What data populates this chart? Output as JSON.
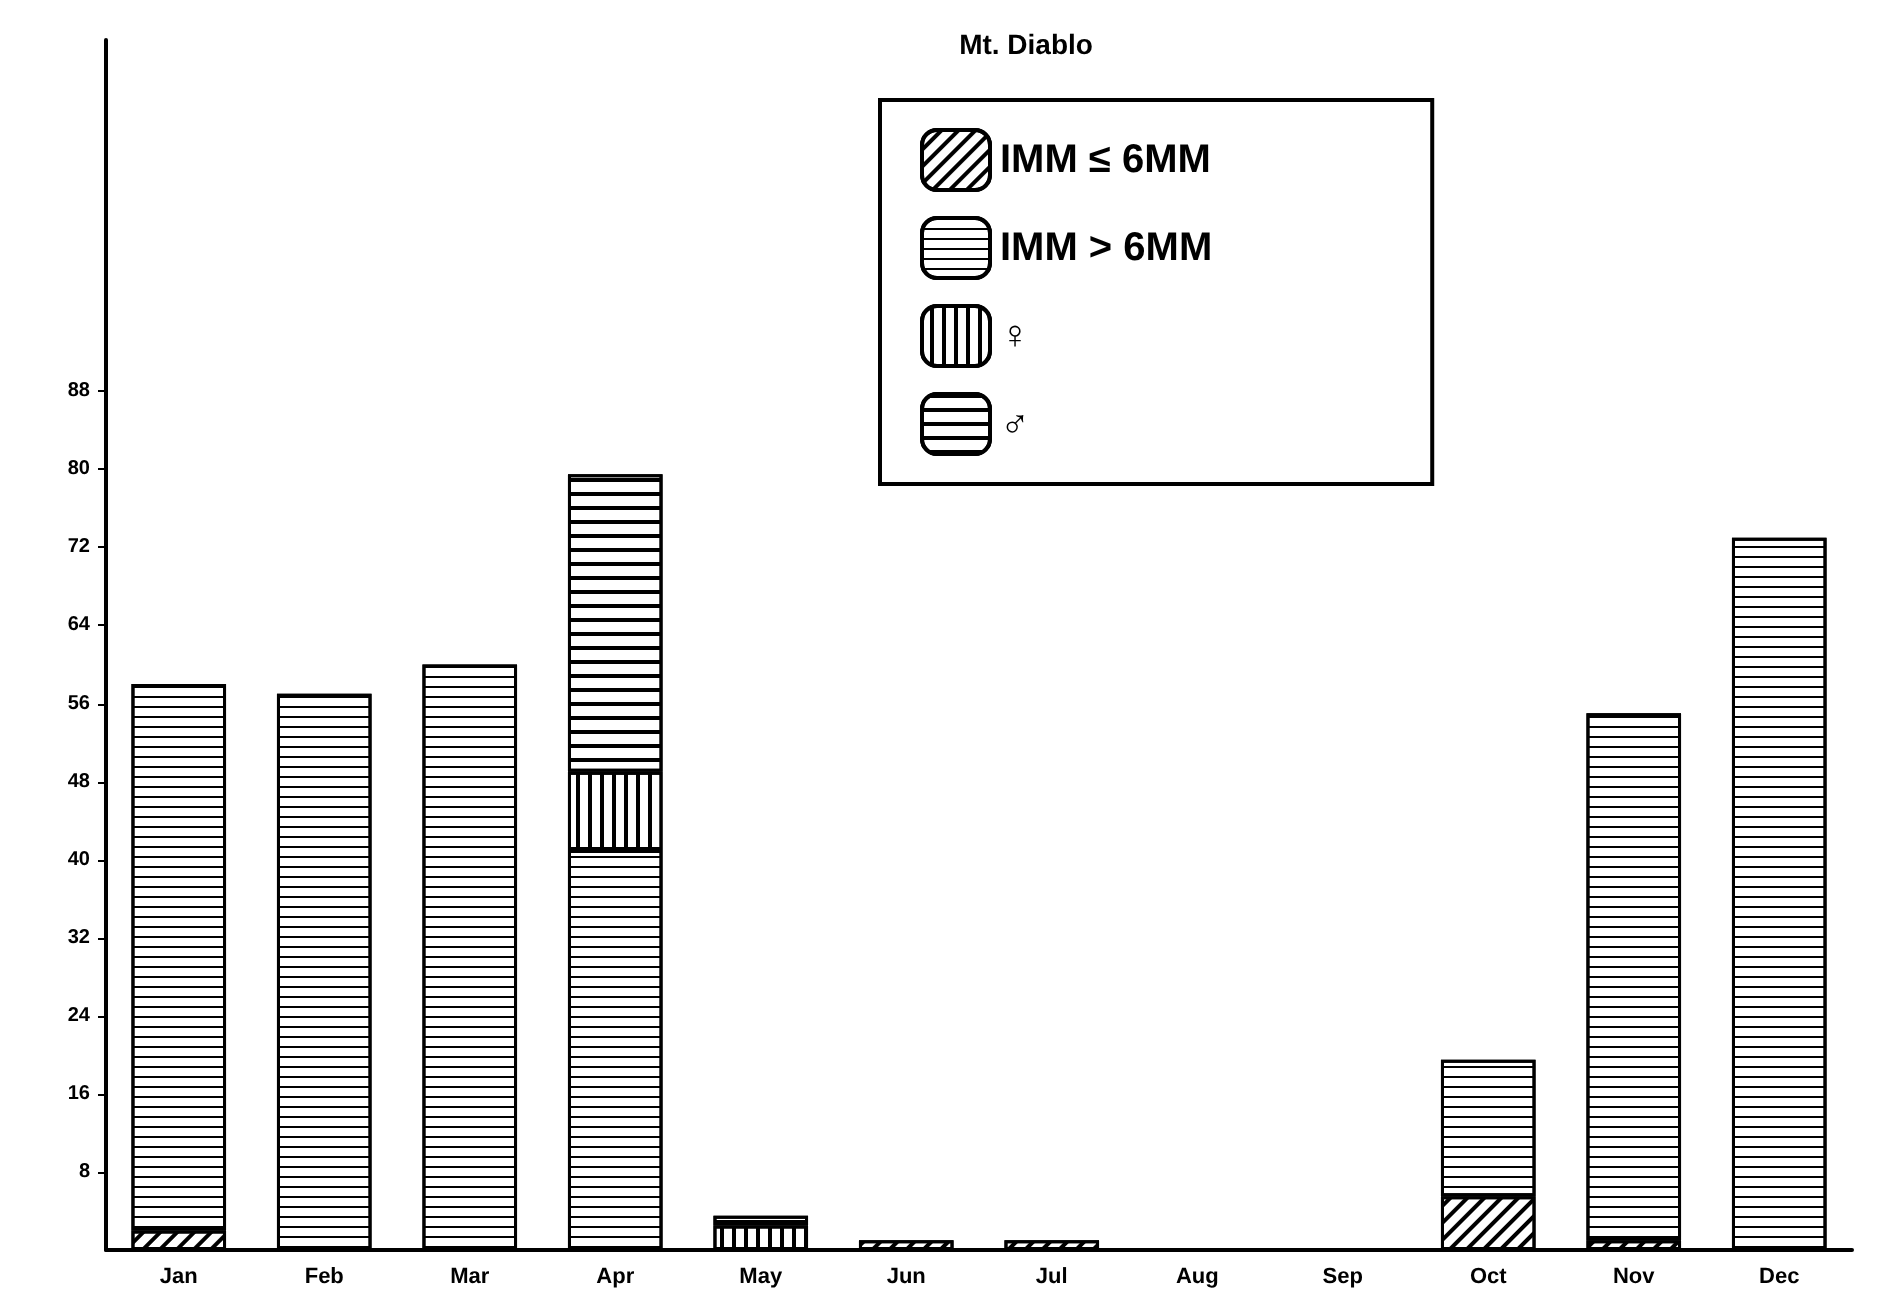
{
  "chart_data": {
    "type": "bar",
    "title": "Mt. Diablo",
    "stacked": true,
    "legend": "top right",
    "grid": false,
    "categories": [
      "Jan",
      "Feb",
      "Mar",
      "Apr",
      "May",
      "Jun",
      "Jul",
      "Aug",
      "Sep",
      "Oct",
      "Nov",
      "Dec"
    ],
    "ylim": [
      0,
      124
    ],
    "yticks": [
      8,
      16,
      24,
      32,
      40,
      48,
      56,
      64,
      72,
      80,
      88
    ],
    "series": [
      {
        "name": "IMM ≤ 6MM",
        "color": "#ffffff",
        "values": [
          2,
          0,
          0,
          0,
          0,
          1,
          1,
          0,
          0,
          5.5,
          1,
          0
        ]
      },
      {
        "name": "IMM > 6MM",
        "color": "#ffffff",
        "values": [
          56,
          57,
          60,
          41,
          0,
          0,
          0,
          0,
          0,
          14,
          54,
          73
        ]
      },
      {
        "name": "♀",
        "color": "#ffffff",
        "values": [
          0,
          0,
          0,
          8,
          2.5,
          0,
          0,
          0,
          0,
          0,
          0,
          0
        ]
      },
      {
        "name": "♂",
        "color": "#ffffff",
        "values": [
          0,
          0,
          0,
          30.5,
          1,
          0,
          0,
          0,
          0,
          0,
          0,
          0
        ]
      }
    ]
  }
}
